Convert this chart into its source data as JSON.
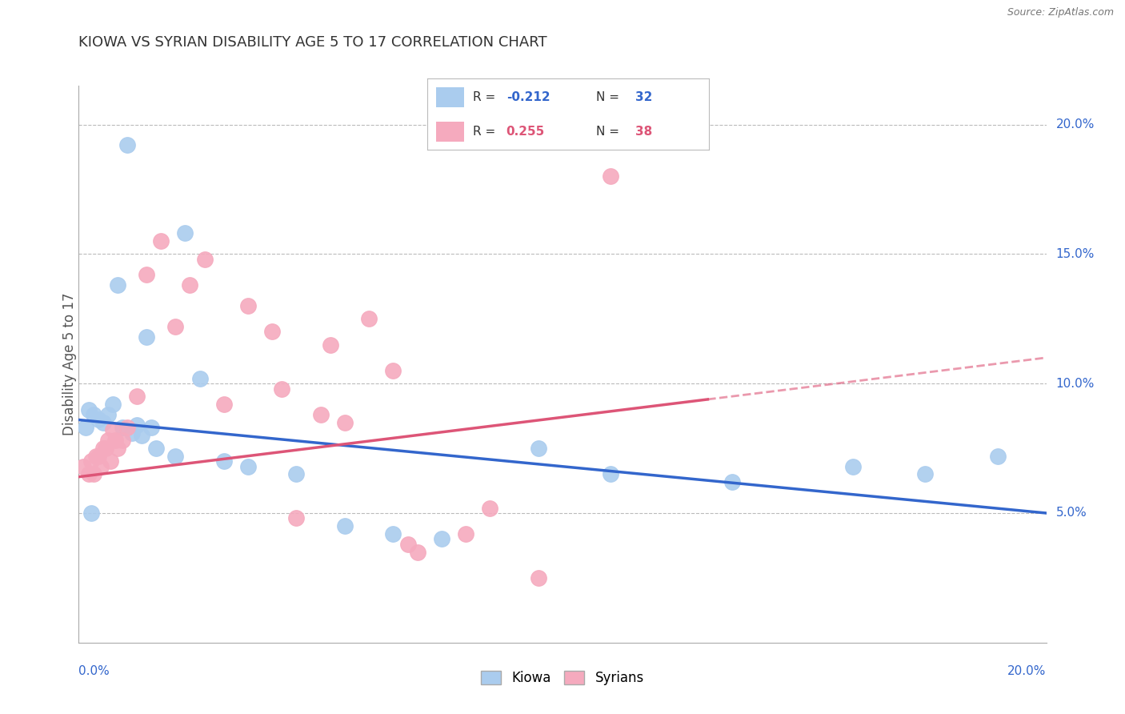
{
  "title": "KIOWA VS SYRIAN DISABILITY AGE 5 TO 17 CORRELATION CHART",
  "source": "Source: ZipAtlas.com",
  "ylabel": "Disability Age 5 to 17",
  "ylabel_right_ticks": [
    "5.0%",
    "10.0%",
    "15.0%",
    "20.0%"
  ],
  "ylabel_right_vals": [
    5.0,
    10.0,
    15.0,
    20.0
  ],
  "xlim": [
    0.0,
    20.0
  ],
  "ylim": [
    0.0,
    21.5
  ],
  "kiowa_color": "#aaccee",
  "syrian_color": "#f5aabe",
  "kiowa_line_color": "#3366cc",
  "syrian_line_color": "#dd5577",
  "background_color": "#ffffff",
  "grid_color": "#bbbbbb",
  "kiowa_R": -0.212,
  "kiowa_N": 32,
  "syrian_R": 0.255,
  "syrian_N": 38,
  "kiowa_line_x0": 0.0,
  "kiowa_line_y0": 8.6,
  "kiowa_line_x1": 20.0,
  "kiowa_line_y1": 5.0,
  "syrian_line_x0": 0.0,
  "syrian_line_y0": 6.4,
  "syrian_line_x1": 20.0,
  "syrian_line_y1": 11.0,
  "syrian_solid_end": 13.0,
  "kiowa_x": [
    1.0,
    2.2,
    0.8,
    1.4,
    0.2,
    0.3,
    0.4,
    0.5,
    0.6,
    0.7,
    0.9,
    1.1,
    1.2,
    1.3,
    1.5,
    1.6,
    2.0,
    2.5,
    3.0,
    3.5,
    4.5,
    5.5,
    6.5,
    7.5,
    9.5,
    11.0,
    13.5,
    16.0,
    17.5,
    19.0,
    0.15,
    0.25
  ],
  "kiowa_y": [
    19.2,
    15.8,
    13.8,
    11.8,
    9.0,
    8.8,
    8.6,
    8.5,
    8.8,
    9.2,
    8.3,
    8.1,
    8.4,
    8.0,
    8.3,
    7.5,
    7.2,
    10.2,
    7.0,
    6.8,
    6.5,
    4.5,
    4.2,
    4.0,
    7.5,
    6.5,
    6.2,
    6.8,
    6.5,
    7.2,
    8.3,
    5.0
  ],
  "syrian_x": [
    0.1,
    0.2,
    0.3,
    0.4,
    0.5,
    0.6,
    0.7,
    0.8,
    0.9,
    1.0,
    1.2,
    1.4,
    1.7,
    2.0,
    2.3,
    2.6,
    3.0,
    3.5,
    4.0,
    4.5,
    5.0,
    5.5,
    6.0,
    6.5,
    7.0,
    8.0,
    9.5,
    11.0,
    4.2,
    5.2,
    6.8,
    8.5,
    0.25,
    0.35,
    0.45,
    0.55,
    0.65,
    0.75
  ],
  "syrian_y": [
    6.8,
    6.5,
    6.5,
    7.2,
    7.5,
    7.8,
    8.2,
    7.5,
    7.8,
    8.3,
    9.5,
    14.2,
    15.5,
    12.2,
    13.8,
    14.8,
    9.2,
    13.0,
    12.0,
    4.8,
    8.8,
    8.5,
    12.5,
    10.5,
    3.5,
    4.2,
    2.5,
    18.0,
    9.8,
    11.5,
    3.8,
    5.2,
    7.0,
    7.2,
    6.8,
    7.5,
    7.0,
    7.8
  ]
}
